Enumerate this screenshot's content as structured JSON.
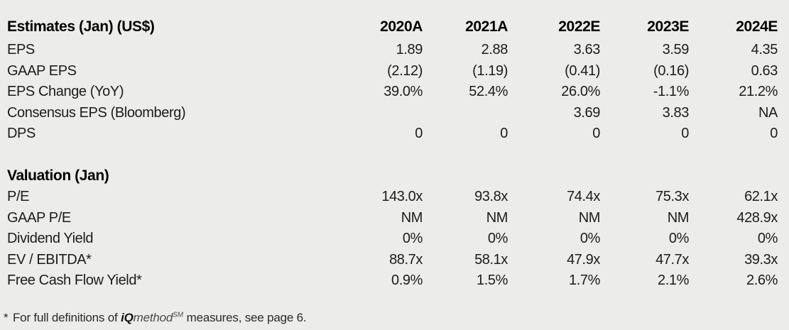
{
  "table": {
    "title": "Estimates (Jan) (US$)",
    "columns": [
      "2020A",
      "2021A",
      "2022E",
      "2023E",
      "2024E"
    ],
    "sections": [
      {
        "title": "",
        "rows": [
          {
            "label": "EPS",
            "values": [
              "1.89",
              "2.88",
              "3.63",
              "3.59",
              "4.35"
            ]
          },
          {
            "label": "GAAP EPS",
            "values": [
              "(2.12)",
              "(1.19)",
              "(0.41)",
              "(0.16)",
              "0.63"
            ]
          },
          {
            "label": "EPS Change (YoY)",
            "values": [
              "39.0%",
              "52.4%",
              "26.0%",
              "-1.1%",
              "21.2%"
            ]
          },
          {
            "label": "Consensus EPS (Bloomberg)",
            "values": [
              "",
              "",
              "3.69",
              "3.83",
              "NA"
            ]
          },
          {
            "label": "DPS",
            "values": [
              "0",
              "0",
              "0",
              "0",
              "0"
            ]
          }
        ]
      },
      {
        "title": "Valuation (Jan)",
        "rows": [
          {
            "label": "P/E",
            "values": [
              "143.0x",
              "93.8x",
              "74.4x",
              "75.3x",
              "62.1x"
            ]
          },
          {
            "label": "GAAP P/E",
            "values": [
              "NM",
              "NM",
              "NM",
              "NM",
              "428.9x"
            ]
          },
          {
            "label": "Dividend Yield",
            "values": [
              "0%",
              "0%",
              "0%",
              "0%",
              "0%"
            ]
          },
          {
            "label": "EV / EBITDA*",
            "values": [
              "88.7x",
              "58.1x",
              "47.9x",
              "47.7x",
              "39.3x"
            ]
          },
          {
            "label": "Free Cash Flow Yield*",
            "values": [
              "0.9%",
              "1.5%",
              "1.7%",
              "2.1%",
              "2.6%"
            ]
          }
        ]
      }
    ]
  },
  "footnote": {
    "marker": "*",
    "prefix": "For full definitions of ",
    "brand_bold": "iQ",
    "brand_italic": "method",
    "brand_sup": "SM",
    "suffix": " measures, see page 6."
  },
  "colors": {
    "background": "#ececea",
    "text": "#1c1c1c",
    "heading": "#000000"
  }
}
